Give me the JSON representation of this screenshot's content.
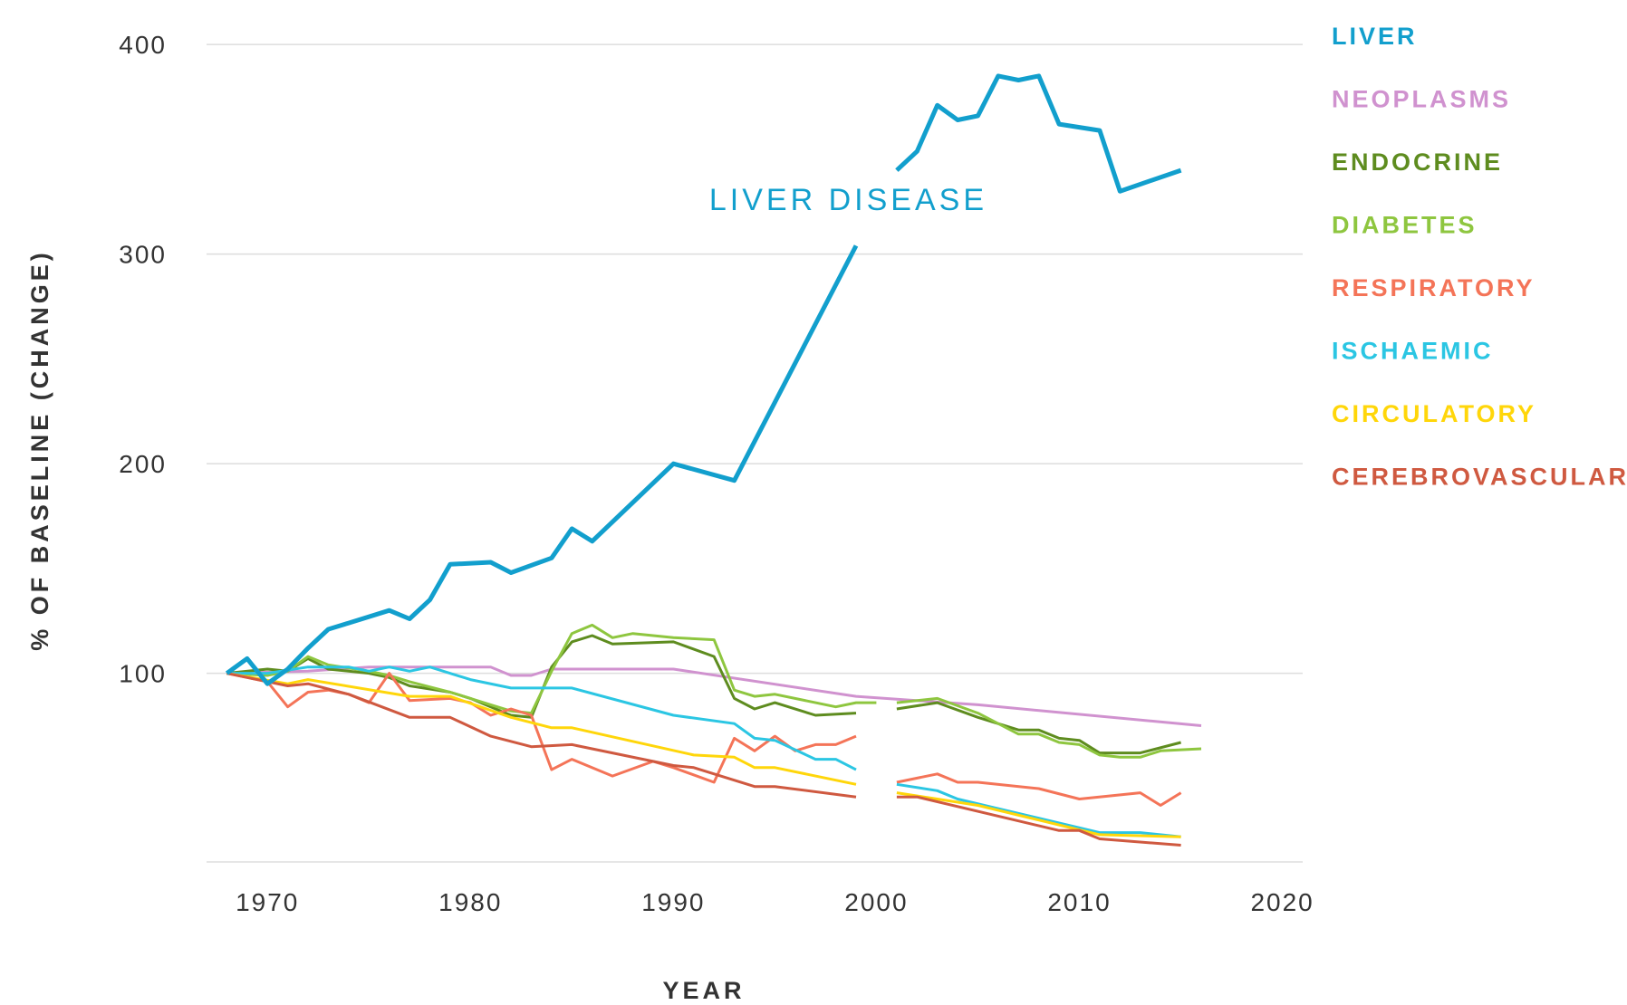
{
  "chart_data": {
    "type": "line",
    "title": "",
    "xlabel": "YEAR",
    "ylabel": "% OF BASELINE (CHANGE)",
    "xlim": [
      1967,
      2021
    ],
    "ylim": [
      10,
      410
    ],
    "x_ticks": [
      1970,
      1980,
      1990,
      2000,
      2010,
      2020
    ],
    "x_tick_labels": [
      "1970",
      "1980",
      "1990",
      "2000",
      "2010",
      "2020"
    ],
    "y_ticks": [
      100,
      200,
      300,
      400
    ],
    "y_tick_labels": [
      "100",
      "200",
      "300",
      "400"
    ],
    "grid": true,
    "legend_position": "right",
    "annotation": {
      "text": "LIVER DISEASE",
      "x": 1991.8,
      "y": 321,
      "color": "#129fcd"
    },
    "series": [
      {
        "name": "LIVER",
        "color": "#129fcd",
        "width": 5,
        "segments": [
          [
            [
              1968,
              100
            ],
            [
              1969,
              107
            ],
            [
              1970,
              95
            ],
            [
              1971,
              102
            ],
            [
              1972,
              112
            ],
            [
              1973,
              121
            ],
            [
              1974,
              124
            ],
            [
              1976,
              130
            ],
            [
              1977,
              126
            ],
            [
              1978,
              135
            ],
            [
              1979,
              152
            ],
            [
              1981,
              153
            ],
            [
              1982,
              148
            ],
            [
              1984,
              155
            ],
            [
              1985,
              169
            ],
            [
              1986,
              163
            ],
            [
              1990,
              200
            ],
            [
              1993,
              192
            ],
            [
              1999,
              304
            ]
          ],
          [
            [
              2001,
              340
            ],
            [
              2002,
              349
            ],
            [
              2003,
              371
            ],
            [
              2004,
              364
            ],
            [
              2005,
              366
            ],
            [
              2006,
              385
            ],
            [
              2007,
              383
            ],
            [
              2008,
              385
            ],
            [
              2009,
              362
            ],
            [
              2011,
              359
            ],
            [
              2012,
              330
            ],
            [
              2015,
              340
            ]
          ]
        ]
      },
      {
        "name": "NEOPLASMS",
        "color": "#d092cf",
        "width": 3,
        "segments": [
          [
            [
              1968,
              100
            ],
            [
              1972,
              101
            ],
            [
              1975,
              103
            ],
            [
              1976,
              103
            ],
            [
              1981,
              103
            ],
            [
              1982,
              99
            ],
            [
              1983,
              99
            ],
            [
              1984,
              102
            ],
            [
              1990,
              102
            ],
            [
              1999,
              89
            ],
            [
              2005,
              85
            ],
            [
              2016,
              75
            ]
          ]
        ]
      },
      {
        "name": "ENDOCRINE",
        "color": "#5e8c1f",
        "width": 3,
        "segments": [
          [
            [
              1968,
              100
            ],
            [
              1970,
              102
            ],
            [
              1971,
              101
            ],
            [
              1972,
              107
            ],
            [
              1973,
              102
            ],
            [
              1975,
              100
            ],
            [
              1976,
              98
            ],
            [
              1977,
              94
            ],
            [
              1979,
              91
            ],
            [
              1980,
              88
            ],
            [
              1981,
              84
            ],
            [
              1982,
              80
            ],
            [
              1983,
              79
            ],
            [
              1984,
              103
            ],
            [
              1985,
              115
            ],
            [
              1986,
              118
            ],
            [
              1987,
              114
            ],
            [
              1990,
              115
            ],
            [
              1992,
              108
            ],
            [
              1993,
              88
            ],
            [
              1994,
              83
            ],
            [
              1995,
              86
            ],
            [
              1997,
              80
            ],
            [
              1999,
              81
            ]
          ],
          [
            [
              2001,
              83
            ],
            [
              2003,
              86
            ],
            [
              2005,
              79
            ],
            [
              2007,
              73
            ],
            [
              2008,
              73
            ],
            [
              2009,
              69
            ],
            [
              2010,
              68
            ],
            [
              2011,
              62
            ],
            [
              2013,
              62
            ],
            [
              2015,
              67
            ]
          ]
        ]
      },
      {
        "name": "DIABETES",
        "color": "#8ec63f",
        "width": 3,
        "segments": [
          [
            [
              1968,
              100
            ],
            [
              1970,
              99
            ],
            [
              1971,
              101
            ],
            [
              1972,
              108
            ],
            [
              1973,
              104
            ],
            [
              1975,
              101
            ],
            [
              1976,
              99
            ],
            [
              1977,
              96
            ],
            [
              1979,
              91
            ],
            [
              1980,
              88
            ],
            [
              1981,
              85
            ],
            [
              1982,
              82
            ],
            [
              1983,
              81
            ],
            [
              1984,
              101
            ],
            [
              1985,
              119
            ],
            [
              1986,
              123
            ],
            [
              1987,
              117
            ],
            [
              1988,
              119
            ],
            [
              1990,
              117
            ],
            [
              1992,
              116
            ],
            [
              1993,
              92
            ],
            [
              1994,
              89
            ],
            [
              1995,
              90
            ],
            [
              1998,
              84
            ],
            [
              1999,
              86
            ],
            [
              2000,
              86
            ]
          ],
          [
            [
              2001,
              86
            ],
            [
              2003,
              88
            ],
            [
              2005,
              81
            ],
            [
              2006,
              76
            ],
            [
              2007,
              71
            ],
            [
              2008,
              71
            ],
            [
              2009,
              67
            ],
            [
              2010,
              66
            ],
            [
              2011,
              61
            ],
            [
              2012,
              60
            ],
            [
              2013,
              60
            ],
            [
              2014,
              63
            ],
            [
              2016,
              64
            ]
          ]
        ]
      },
      {
        "name": "RESPIRATORY",
        "color": "#f47458",
        "width": 3,
        "segments": [
          [
            [
              1968,
              100
            ],
            [
              1970,
              96
            ],
            [
              1971,
              84
            ],
            [
              1972,
              91
            ],
            [
              1973,
              92
            ],
            [
              1974,
              90
            ],
            [
              1975,
              86
            ],
            [
              1976,
              100
            ],
            [
              1977,
              87
            ],
            [
              1979,
              88
            ],
            [
              1980,
              86
            ],
            [
              1981,
              80
            ],
            [
              1982,
              83
            ],
            [
              1983,
              80
            ],
            [
              1984,
              54
            ],
            [
              1985,
              59
            ],
            [
              1987,
              51
            ],
            [
              1989,
              58
            ],
            [
              1990,
              55
            ],
            [
              1992,
              48
            ],
            [
              1993,
              69
            ],
            [
              1994,
              63
            ],
            [
              1995,
              70
            ],
            [
              1996,
              63
            ],
            [
              1997,
              66
            ],
            [
              1998,
              66
            ],
            [
              1999,
              70
            ]
          ],
          [
            [
              2001,
              48
            ],
            [
              2003,
              52
            ],
            [
              2004,
              48
            ],
            [
              2005,
              48
            ],
            [
              2008,
              45
            ],
            [
              2010,
              40
            ],
            [
              2013,
              43
            ],
            [
              2014,
              37
            ],
            [
              2015,
              43
            ]
          ]
        ]
      },
      {
        "name": "ISCHAEMIC",
        "color": "#2bc6e3",
        "width": 3,
        "segments": [
          [
            [
              1968,
              100
            ],
            [
              1970,
              100
            ],
            [
              1972,
              103
            ],
            [
              1974,
              103
            ],
            [
              1975,
              101
            ],
            [
              1976,
              103
            ],
            [
              1977,
              101
            ],
            [
              1978,
              103
            ],
            [
              1980,
              97
            ],
            [
              1982,
              93
            ],
            [
              1985,
              93
            ],
            [
              1990,
              80
            ],
            [
              1993,
              76
            ],
            [
              1994,
              69
            ],
            [
              1995,
              68
            ],
            [
              1997,
              59
            ],
            [
              1998,
              59
            ],
            [
              1999,
              54
            ]
          ],
          [
            [
              2001,
              47
            ],
            [
              2003,
              44
            ],
            [
              2004,
              40
            ],
            [
              2011,
              24
            ],
            [
              2013,
              24
            ],
            [
              2015,
              22
            ]
          ]
        ]
      },
      {
        "name": "CIRCULATORY",
        "color": "#ffd60a",
        "width": 3,
        "segments": [
          [
            [
              1968,
              100
            ],
            [
              1971,
              95
            ],
            [
              1972,
              97
            ],
            [
              1977,
              89
            ],
            [
              1979,
              89
            ],
            [
              1982,
              79
            ],
            [
              1984,
              74
            ],
            [
              1985,
              74
            ],
            [
              1991,
              61
            ],
            [
              1993,
              60
            ],
            [
              1994,
              55
            ],
            [
              1995,
              55
            ],
            [
              1999,
              47
            ]
          ],
          [
            [
              2001,
              43
            ],
            [
              2003,
              40
            ],
            [
              2005,
              37
            ],
            [
              2011,
              23
            ],
            [
              2015,
              22
            ]
          ]
        ]
      },
      {
        "name": "CEREBROVASCULAR",
        "color": "#cf5940",
        "width": 3,
        "segments": [
          [
            [
              1968,
              100
            ],
            [
              1971,
              94
            ],
            [
              1972,
              95
            ],
            [
              1974,
              90
            ],
            [
              1977,
              79
            ],
            [
              1979,
              79
            ],
            [
              1981,
              70
            ],
            [
              1983,
              65
            ],
            [
              1985,
              66
            ],
            [
              1990,
              56
            ],
            [
              1991,
              55
            ],
            [
              1994,
              46
            ],
            [
              1995,
              46
            ],
            [
              1999,
              41
            ]
          ],
          [
            [
              2001,
              41
            ],
            [
              2002,
              41
            ],
            [
              2009,
              25
            ],
            [
              2010,
              25
            ],
            [
              2011,
              21
            ],
            [
              2015,
              18
            ]
          ]
        ]
      }
    ]
  }
}
